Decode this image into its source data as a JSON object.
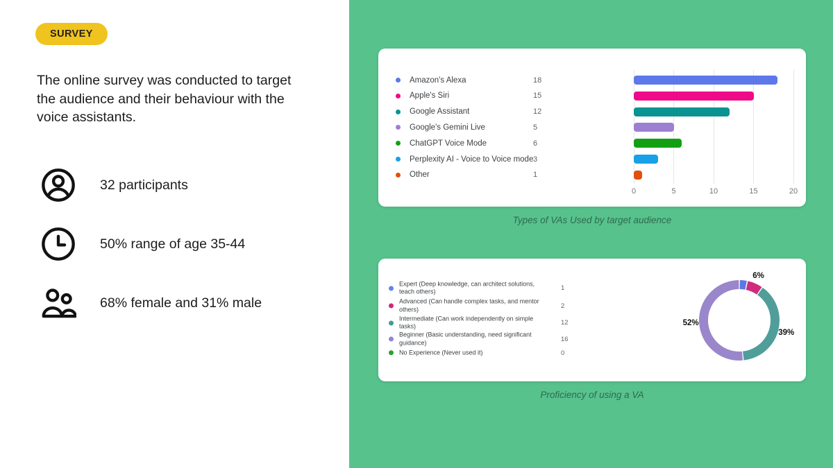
{
  "badge": {
    "label": "SURVEY"
  },
  "left": {
    "intro": "The online survey was conducted to target the audience and their behaviour with the voice assistants.",
    "stats": [
      {
        "icon": "user-circle-icon",
        "label": "32 participants"
      },
      {
        "icon": "clock-icon",
        "label": "50% range of age 35-44"
      },
      {
        "icon": "people-icon",
        "label": "68% female and 31% male"
      }
    ]
  },
  "theme": {
    "panel_green": "#57c28c",
    "badge_yellow": "#f0c41e",
    "card_bg": "#ffffff",
    "caption_color": "#2d6b4e"
  },
  "chart_data": [
    {
      "type": "bar",
      "orientation": "horizontal",
      "caption": "Types of VAs Used by target audience",
      "categories": [
        "Amazon's Alexa",
        "Apple's Siri",
        "Google Assistant",
        "Google's Gemini Live",
        "ChatGPT Voice Mode",
        "Perplexity AI - Voice to Voice mode",
        "Other"
      ],
      "values": [
        18,
        15,
        12,
        5,
        6,
        3,
        1
      ],
      "colors": [
        "#5e78ea",
        "#f00a88",
        "#0a9390",
        "#9d7fd4",
        "#12a012",
        "#18a0e8",
        "#e2500a"
      ],
      "xlim": [
        0,
        20
      ],
      "xticks": [
        0,
        5,
        10,
        15,
        20
      ],
      "grid": true,
      "legend_position": "left"
    },
    {
      "type": "pie",
      "variant": "donut",
      "caption": "Proficiency of using a VA",
      "categories": [
        "Expert (Deep knowledge, can architect solutions, teach others)",
        "Advanced (Can handle complex tasks, and mentor others)",
        "Intermediate (Can work independently on simple tasks)",
        "Beginner (Basic understanding, need significant guidance)",
        "No Experience (Never used it)"
      ],
      "values": [
        1,
        2,
        12,
        16,
        0
      ],
      "percent_labels": [
        "",
        "6%",
        "39%",
        "52%",
        ""
      ],
      "colors": [
        "#5b79e3",
        "#d02c7d",
        "#4f9e9a",
        "#9a86cb",
        "#3da043"
      ],
      "legend_colors": [
        "#6582ec",
        "#cf2679",
        "#459995",
        "#9483d2",
        "#2da22d"
      ],
      "legend_position": "left"
    }
  ]
}
